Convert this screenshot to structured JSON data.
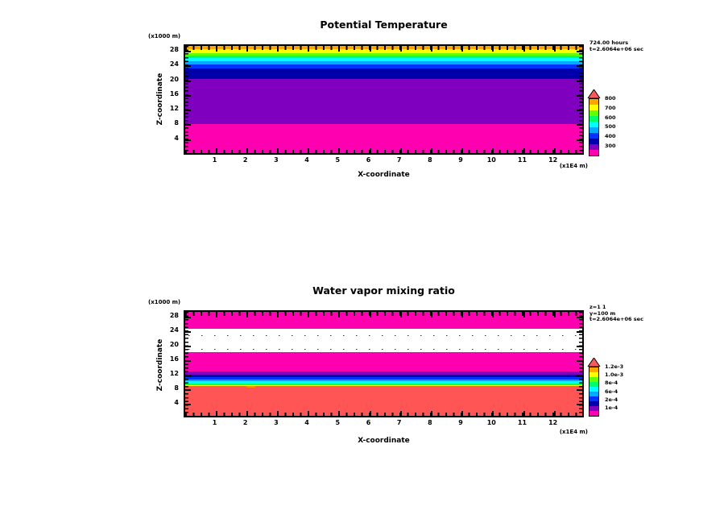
{
  "canvas": {
    "background": "#ffffff"
  },
  "plots": [
    {
      "title": "Potential Temperature",
      "y_unit_label": "(x1000 m)",
      "y_axis_label": "Z-coordinate",
      "x_axis_label": "X-coordinate",
      "x_unit_label": "(x1E4 m)",
      "y_tick_labels": [
        "28",
        "24",
        "20",
        "16",
        "12",
        "8",
        "4"
      ],
      "x_tick_labels": [
        "1",
        "2",
        "3",
        "4",
        "5",
        "6",
        "7",
        "8",
        "9",
        "10",
        "11",
        "12"
      ],
      "annotation_lines": [
        "724.00 hours",
        "t=2.6064e+06 sec"
      ],
      "colorbar_labels_top_to_bottom": [
        "800",
        "700",
        "600",
        "500",
        "400",
        "300"
      ],
      "colorbar_segments_bottom_to_top": [
        "#FF00B0",
        "#8000C0",
        "#0000AA",
        "#0033FF",
        "#00AAFF",
        "#00FFFF",
        "#00FF66",
        "#66FF00",
        "#FFFF00",
        "#FFA500"
      ],
      "colorbar_arrow_color": "#FF5A5A",
      "bands_top_to_bottom": [
        {
          "color": "#FFA500",
          "height_pct": 3.0
        },
        {
          "color": "#FFFF00",
          "height_pct": 3.6
        },
        {
          "color": "#66FF00",
          "height_pct": 2.2
        },
        {
          "color": "#00FF66",
          "height_pct": 2.2
        },
        {
          "color": "#00FFFF",
          "height_pct": 3.6
        },
        {
          "color": "#00AAFF",
          "height_pct": 2.9
        },
        {
          "color": "#0033FF",
          "height_pct": 3.6
        },
        {
          "color": "#0000AA",
          "height_pct": 9.5
        },
        {
          "color": "#8000C0",
          "height_pct": 42.4
        },
        {
          "color": "#FF00B0",
          "height_pct": 27.0
        }
      ]
    },
    {
      "title": "Water vapor mixing ratio",
      "y_unit_label": "(x1000 m)",
      "y_axis_label": "Z-coordinate",
      "x_axis_label": "X-coordinate",
      "x_unit_label": "(x1E4 m)",
      "y_tick_labels": [
        "28",
        "24",
        "20",
        "16",
        "12",
        "8",
        "4"
      ],
      "x_tick_labels": [
        "1",
        "2",
        "3",
        "4",
        "5",
        "6",
        "7",
        "8",
        "9",
        "10",
        "11",
        "12"
      ],
      "annotation_lines": [
        "z=1 1",
        "y=100 m",
        "t=2.6064e+06 sec"
      ],
      "colorbar_labels_top_to_bottom": [
        "1.2e-3",
        "1.0e-3",
        "8e-4",
        "6e-4",
        "2e-4",
        "1e-4"
      ],
      "colorbar_segments_bottom_to_top": [
        "#FF00B0",
        "#8000C0",
        "#0000AA",
        "#0033FF",
        "#00AAFF",
        "#00FFFF",
        "#00FF66",
        "#66FF00",
        "#FFFF00",
        "#FFA500"
      ],
      "colorbar_arrow_color": "#FF5A5A",
      "bands_top_to_bottom": [
        {
          "color": "#FF00B0",
          "height_pct": 16.5
        },
        {
          "color": "#FFFFFF",
          "height_pct": 22.0
        },
        {
          "color": "#FF00B0",
          "height_pct": 19.0
        },
        {
          "color": "#8000C0",
          "height_pct": 2.8
        },
        {
          "color": "#0000AA",
          "height_pct": 2.8
        },
        {
          "color": "#0033FF",
          "height_pct": 2.0
        },
        {
          "color": "#00AAFF",
          "height_pct": 1.5
        },
        {
          "color": "#00FFFF",
          "height_pct": 2.4
        },
        {
          "color": "#00FF66",
          "height_pct": 1.2
        },
        {
          "color": "#FFFF00",
          "height_pct": 1.2
        },
        {
          "color": "#FF5555",
          "height_pct": 28.6
        }
      ],
      "dotted_line_tops_pct": [
        22.5,
        35.3
      ],
      "dotted_line_color": "#333333",
      "orange_blip": {
        "left_pct": 15.5,
        "top_pct": 71.0,
        "color": "#FF8800"
      }
    }
  ],
  "chart_data": [
    {
      "type": "heatmap",
      "title": "Potential Temperature",
      "xlabel": "X-coordinate",
      "x_units": "x1E4 m",
      "ylabel": "Z-coordinate",
      "y_units": "x1000 m",
      "xlim": [
        0,
        12.8
      ],
      "ylim": [
        0,
        29
      ],
      "x_ticks": [
        1,
        2,
        3,
        4,
        5,
        6,
        7,
        8,
        9,
        10,
        11,
        12
      ],
      "y_ticks": [
        4,
        8,
        12,
        16,
        20,
        24,
        28
      ],
      "grid": false,
      "legend_position": "right-colorbar",
      "colorbar_ticks": [
        300,
        400,
        500,
        600,
        700,
        800
      ],
      "annotations": [
        "724.00 hours",
        "t=2.6064e+06 sec"
      ],
      "field_structure": "horizontally uniform stratified layers, value increasing with height",
      "layers_bottom_to_top": [
        {
          "z_km": [
            0,
            8
          ],
          "colorbar_bin": "300-350",
          "color": "magenta"
        },
        {
          "z_km": [
            8,
            20.5
          ],
          "colorbar_bin": "350-400",
          "color": "violet"
        },
        {
          "z_km": [
            20.5,
            23
          ],
          "colorbar_bin": "400-450",
          "color": "navy"
        },
        {
          "z_km": [
            23,
            24
          ],
          "colorbar_bin": "450-500",
          "color": "blue"
        },
        {
          "z_km": [
            24,
            24.8
          ],
          "colorbar_bin": "500-550",
          "color": "light-blue"
        },
        {
          "z_km": [
            24.8,
            25.8
          ],
          "colorbar_bin": "550-600",
          "color": "cyan"
        },
        {
          "z_km": [
            25.8,
            26.4
          ],
          "colorbar_bin": "600-650",
          "color": "green"
        },
        {
          "z_km": [
            26.4,
            27
          ],
          "colorbar_bin": "650-700",
          "color": "green-yellow"
        },
        {
          "z_km": [
            27,
            28
          ],
          "colorbar_bin": "700-750",
          "color": "yellow"
        },
        {
          "z_km": [
            28,
            29
          ],
          "colorbar_bin": "750-800",
          "color": "orange"
        }
      ]
    },
    {
      "type": "heatmap",
      "title": "Water vapor mixing ratio",
      "xlabel": "X-coordinate",
      "x_units": "x1E4 m",
      "ylabel": "Z-coordinate",
      "y_units": "x1000 m",
      "xlim": [
        0,
        12.8
      ],
      "ylim": [
        0,
        29
      ],
      "x_ticks": [
        1,
        2,
        3,
        4,
        5,
        6,
        7,
        8,
        9,
        10,
        11,
        12
      ],
      "y_ticks": [
        4,
        8,
        12,
        16,
        20,
        24,
        28
      ],
      "grid": false,
      "legend_position": "right-colorbar",
      "colorbar_ticks": [
        "1.2e-3",
        "1.0e-3",
        "8e-4",
        "6e-4",
        "2e-4",
        "1e-4"
      ],
      "annotations": [
        "z=1 1",
        "y=100 m",
        "t=2.6064e+06 sec"
      ],
      "field_structure": "horizontally uniform layers; moist boundary layer below ~8 km, dry white gap 17-23 km with two dotted contour lines",
      "layers_bottom_to_top": [
        {
          "z_km": [
            0,
            8.3
          ],
          "colorbar_bin": "above 1.2e-3 (overflow)",
          "color": "salmon"
        },
        {
          "z_km": [
            8.3,
            8.6
          ],
          "colorbar_bin": "near 1.0e-3",
          "color": "yellow"
        },
        {
          "z_km": [
            8.6,
            8.9
          ],
          "colorbar_bin": "near 8e-4",
          "color": "green"
        },
        {
          "z_km": [
            8.9,
            9.7
          ],
          "colorbar_bin": "6e-4 range",
          "color": "cyan"
        },
        {
          "z_km": [
            9.7,
            10.2
          ],
          "colorbar_bin": "4e-4 range",
          "color": "light-blue"
        },
        {
          "z_km": [
            10.2,
            10.9
          ],
          "colorbar_bin": "2e-4 range",
          "color": "blue"
        },
        {
          "z_km": [
            10.9,
            11.6
          ],
          "colorbar_bin": "2e-4 range",
          "color": "navy"
        },
        {
          "z_km": [
            11.6,
            12.3
          ],
          "colorbar_bin": "1e-4 range",
          "color": "violet"
        },
        {
          "z_km": [
            12.3,
            17.3
          ],
          "colorbar_bin": "lowest bin ~1e-4",
          "color": "magenta"
        },
        {
          "z_km": [
            17.3,
            23.4
          ],
          "colorbar_bin": "below lowest contour",
          "color": "white"
        },
        {
          "z_km": [
            23.4,
            29
          ],
          "colorbar_bin": "lowest bin ~1e-4",
          "color": "magenta"
        }
      ]
    }
  ]
}
